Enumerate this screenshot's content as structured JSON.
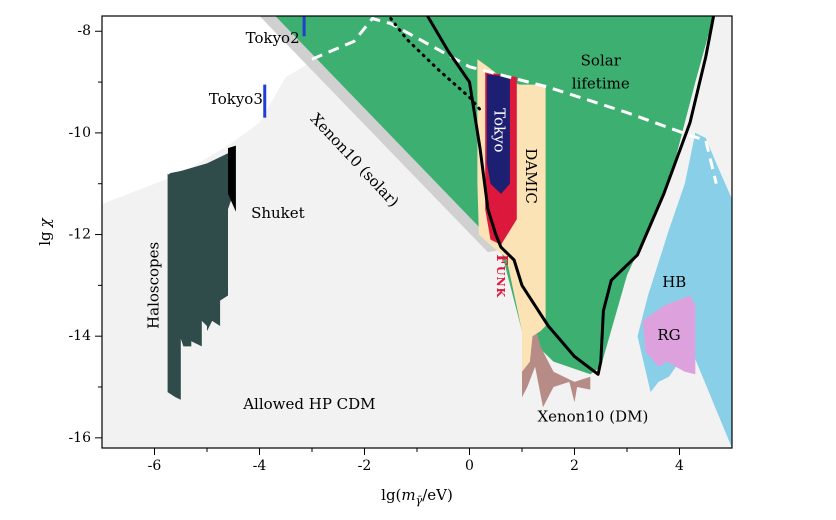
{
  "chart_data": {
    "type": "area",
    "title": "",
    "xlabel": "lg(m_γ̄/eV)",
    "xlabel_parts": {
      "pre": "lg(",
      "m": "m",
      "sub": "γ̄",
      "post": "/eV)"
    },
    "ylabel": "lg χ",
    "ylabel_parts": {
      "pre": "lg",
      "chi": "χ"
    },
    "xlim": [
      -7,
      5
    ],
    "ylim": [
      -16.2,
      -7.7
    ],
    "xticks": [
      -6,
      -4,
      -2,
      0,
      2,
      4
    ],
    "xtick_labels": [
      "-6",
      "-4",
      "-2",
      "0",
      "2",
      "4"
    ],
    "yticks": [
      -16,
      -14,
      -12,
      -10,
      -8
    ],
    "ytick_labels": [
      "-16",
      "-14",
      "-12",
      "-10",
      "-8"
    ],
    "grid": false,
    "regions": [
      {
        "name": "Allowed HP CDM",
        "color": "#f2f2f2",
        "points": [
          [
            -7,
            -16.2
          ],
          [
            5,
            -16.2
          ],
          [
            5,
            -7.7
          ],
          [
            -2.2,
            -7.7
          ],
          [
            -2.7,
            -8.55
          ],
          [
            -3.0,
            -8.6
          ],
          [
            -3.5,
            -8.9
          ],
          [
            -4.0,
            -9.8
          ],
          [
            -4.6,
            -10.25
          ],
          [
            -5.5,
            -10.8
          ],
          [
            -7,
            -11.4
          ]
        ]
      },
      {
        "name": "Xenon10 (solar)",
        "color": "#d0d0d0",
        "points": [
          [
            -4.0,
            -7.7
          ],
          [
            -3.7,
            -7.7
          ],
          [
            0.6,
            -12.3
          ],
          [
            0.35,
            -12.35
          ]
        ]
      },
      {
        "name": "Solar lifetime region",
        "color": "#3db071",
        "points": [
          [
            -3.7,
            -7.7
          ],
          [
            4.65,
            -7.7
          ],
          [
            4.3,
            -9.0
          ],
          [
            3.8,
            -11.0
          ],
          [
            3.0,
            -12.8
          ],
          [
            2.5,
            -14.6
          ],
          [
            2.3,
            -14.75
          ],
          [
            1.6,
            -14.5
          ],
          [
            1.0,
            -13.9
          ],
          [
            0.6,
            -12.3
          ]
        ]
      },
      {
        "name": "Xenon10 (DM)",
        "color": "#b88c86",
        "points": [
          [
            1.0,
            -13.0
          ],
          [
            1.2,
            -13.6
          ],
          [
            1.35,
            -14.2
          ],
          [
            1.6,
            -14.7
          ],
          [
            2.0,
            -14.9
          ],
          [
            2.3,
            -14.8
          ],
          [
            2.3,
            -15.05
          ],
          [
            2.05,
            -15.0
          ],
          [
            2.0,
            -15.3
          ],
          [
            1.9,
            -14.9
          ],
          [
            1.6,
            -15.0
          ],
          [
            1.4,
            -15.4
          ],
          [
            1.25,
            -14.6
          ],
          [
            1.1,
            -15.0
          ],
          [
            1.0,
            -15.2
          ]
        ]
      },
      {
        "name": "HB",
        "color": "#89cfe8",
        "points": [
          [
            4.3,
            -10.0
          ],
          [
            4.5,
            -10.1
          ],
          [
            4.7,
            -10.6
          ],
          [
            5.0,
            -11.3
          ],
          [
            5.0,
            -16.2
          ],
          [
            4.2,
            -14.2
          ],
          [
            3.8,
            -14.8
          ],
          [
            3.6,
            -14.9
          ],
          [
            3.45,
            -15.1
          ],
          [
            3.2,
            -14.0
          ],
          [
            3.4,
            -13.2
          ],
          [
            3.8,
            -11.9
          ],
          [
            4.1,
            -11.0
          ]
        ]
      },
      {
        "name": "RG",
        "color": "#dda2dd",
        "points": [
          [
            3.3,
            -13.7
          ],
          [
            3.7,
            -13.4
          ],
          [
            4.2,
            -13.2
          ],
          [
            4.3,
            -13.4
          ],
          [
            4.3,
            -14.75
          ],
          [
            4.1,
            -14.7
          ],
          [
            3.75,
            -14.5
          ],
          [
            3.6,
            -14.6
          ],
          [
            3.35,
            -14.3
          ]
        ]
      },
      {
        "name": "DAMIC",
        "color": "#fbe3b5",
        "points": [
          [
            0.15,
            -8.55
          ],
          [
            0.35,
            -8.7
          ],
          [
            0.6,
            -8.9
          ],
          [
            0.95,
            -9.05
          ],
          [
            1.45,
            -9.05
          ],
          [
            1.45,
            -13.8
          ],
          [
            1.35,
            -13.9
          ],
          [
            1.2,
            -14.0
          ],
          [
            1.15,
            -14.5
          ],
          [
            1.0,
            -14.7
          ],
          [
            1.0,
            -13.9
          ],
          [
            0.7,
            -12.45
          ],
          [
            0.45,
            -12.25
          ],
          [
            0.18,
            -12.0
          ],
          [
            0.15,
            -11.0
          ]
        ]
      },
      {
        "name": "Funk",
        "color": "#dd183d",
        "points": [
          [
            0.3,
            -8.8
          ],
          [
            0.9,
            -8.9
          ],
          [
            0.9,
            -11.7
          ],
          [
            0.6,
            -12.2
          ],
          [
            0.4,
            -12.1
          ],
          [
            0.3,
            -11.5
          ]
        ]
      },
      {
        "name": "Tokyo",
        "color": "#1d1f72",
        "points": [
          [
            0.33,
            -8.85
          ],
          [
            0.77,
            -8.9
          ],
          [
            0.77,
            -11.0
          ],
          [
            0.6,
            -11.2
          ],
          [
            0.4,
            -11.0
          ],
          [
            0.33,
            -10.6
          ]
        ]
      },
      {
        "name": "Haloscopes",
        "color": "#2f4c4a",
        "points": [
          [
            -5.75,
            -10.8
          ],
          [
            -5.5,
            -10.75
          ],
          [
            -5.0,
            -10.6
          ],
          [
            -4.6,
            -10.4
          ],
          [
            -4.5,
            -10.3
          ],
          [
            -4.5,
            -11.2
          ],
          [
            -4.6,
            -11.5
          ],
          [
            -4.6,
            -13.2
          ],
          [
            -4.75,
            -13.3
          ],
          [
            -4.75,
            -13.8
          ],
          [
            -4.9,
            -13.7
          ],
          [
            -5.0,
            -13.9
          ],
          [
            -5.0,
            -13.8
          ],
          [
            -5.1,
            -13.7
          ],
          [
            -5.1,
            -14.2
          ],
          [
            -5.3,
            -14.1
          ],
          [
            -5.3,
            -14.2
          ],
          [
            -5.45,
            -14.2
          ],
          [
            -5.5,
            -14.05
          ],
          [
            -5.5,
            -15.25
          ],
          [
            -5.6,
            -15.2
          ],
          [
            -5.75,
            -15.1
          ]
        ]
      },
      {
        "name": "Shuket",
        "color": "#000000",
        "points": [
          [
            -4.6,
            -10.3
          ],
          [
            -4.45,
            -10.25
          ],
          [
            -4.45,
            -11.55
          ],
          [
            -4.6,
            -11.2
          ]
        ]
      }
    ],
    "lines": [
      {
        "name": "Solar lifetime",
        "style": "dashed",
        "color": "#ffffff",
        "points": [
          [
            -5.75,
            -10.8
          ],
          [
            -5.5,
            -10.55
          ],
          [
            -5,
            -10.4
          ],
          [
            -4.6,
            -10.25
          ],
          [
            -4.5,
            -10.1
          ]
        ]
      },
      {
        "name": "Solar lifetime",
        "style": "dashed",
        "color": "#ffffff",
        "points": [
          [
            -3.0,
            -8.55
          ],
          [
            -2.2,
            -8.2
          ],
          [
            -1.85,
            -7.75
          ],
          [
            -1.5,
            -7.85
          ],
          [
            0,
            -8.7
          ],
          [
            1.5,
            -9.1
          ],
          [
            3.0,
            -9.6
          ],
          [
            4.2,
            -10.05
          ],
          [
            4.5,
            -10.15
          ],
          [
            4.7,
            -11.0
          ]
        ]
      },
      {
        "name": "Solar lifetime bound",
        "style": "solid",
        "color": "#000000",
        "points": [
          [
            -0.8,
            -7.7
          ],
          [
            -0.4,
            -8.4
          ],
          [
            0.0,
            -9.0
          ],
          [
            0.2,
            -10.3
          ],
          [
            0.35,
            -11.5
          ],
          [
            0.5,
            -12.0
          ],
          [
            0.6,
            -12.25
          ],
          [
            0.85,
            -12.5
          ],
          [
            1.0,
            -13.0
          ],
          [
            1.5,
            -13.8
          ],
          [
            2.0,
            -14.4
          ],
          [
            2.45,
            -14.75
          ],
          [
            2.5,
            -14.5
          ],
          [
            2.55,
            -13.5
          ],
          [
            2.7,
            -12.9
          ],
          [
            3.2,
            -12.4
          ],
          [
            3.7,
            -11.2
          ],
          [
            4.2,
            -9.8
          ],
          [
            4.5,
            -8.5
          ],
          [
            4.65,
            -7.7
          ]
        ]
      },
      {
        "name": "Dotted bound",
        "style": "dotted",
        "color": "#000000",
        "points": [
          [
            -1.5,
            -7.75
          ],
          [
            -1.2,
            -8.15
          ],
          [
            -0.6,
            -8.75
          ],
          [
            0.0,
            -9.3
          ],
          [
            0.25,
            -9.6
          ]
        ]
      }
    ],
    "point_bars": [
      {
        "name": "Tokyo2",
        "x": -3.15,
        "y1": -7.7,
        "y2": -8.1,
        "color": "#1f3fd0"
      },
      {
        "name": "Tokyo3",
        "x": -3.9,
        "y1": -9.05,
        "y2": -9.7,
        "color": "#1f3fd0"
      }
    ],
    "annotations": [
      {
        "text": "Solar",
        "x": 2.5,
        "y": -8.6,
        "color": "#000000",
        "anchor": "middle"
      },
      {
        "text": "lifetime",
        "x": 2.5,
        "y": -9.05,
        "color": "#000000",
        "anchor": "middle"
      },
      {
        "text": "Tokyo2",
        "x": -3.75,
        "y": -8.15,
        "color": "#000000",
        "anchor": "middle"
      },
      {
        "text": "Tokyo3",
        "x": -4.45,
        "y": -9.35,
        "color": "#000000",
        "anchor": "middle"
      },
      {
        "text": "Shuket",
        "x": -3.65,
        "y": -11.6,
        "color": "#000000",
        "anchor": "middle"
      },
      {
        "text": "Allowed HP CDM",
        "x": -3.05,
        "y": -15.35,
        "color": "#000000",
        "anchor": "middle"
      },
      {
        "text": "Xenon10 (DM)",
        "x": 2.35,
        "y": -15.6,
        "color": "#000000",
        "anchor": "middle"
      },
      {
        "text": "HB",
        "x": 3.9,
        "y": -12.95,
        "color": "#000000",
        "anchor": "middle"
      },
      {
        "text": "RG",
        "x": 3.8,
        "y": -14.0,
        "color": "#000000",
        "anchor": "middle"
      },
      {
        "text": "Haloscopes",
        "x": -6.0,
        "y": -13.0,
        "rotate": -90,
        "color": "#000000",
        "anchor": "middle"
      },
      {
        "text": "Xenon10 (solar)",
        "x": -2.2,
        "y": -10.55,
        "rotate": 47,
        "color": "#000000",
        "anchor": "middle"
      },
      {
        "text": "Tokyo",
        "x": 0.55,
        "y": -9.95,
        "rotate": 90,
        "color": "#ffffff",
        "anchor": "middle"
      },
      {
        "text": "DAMIC",
        "x": 1.15,
        "y": -10.85,
        "rotate": 90,
        "color": "#000000",
        "anchor": "middle"
      },
      {
        "text": "Funk",
        "x": 0.6,
        "y": -12.82,
        "rotate": 90,
        "color": "#dd183d",
        "anchor": "middle",
        "bold": true
      }
    ]
  }
}
